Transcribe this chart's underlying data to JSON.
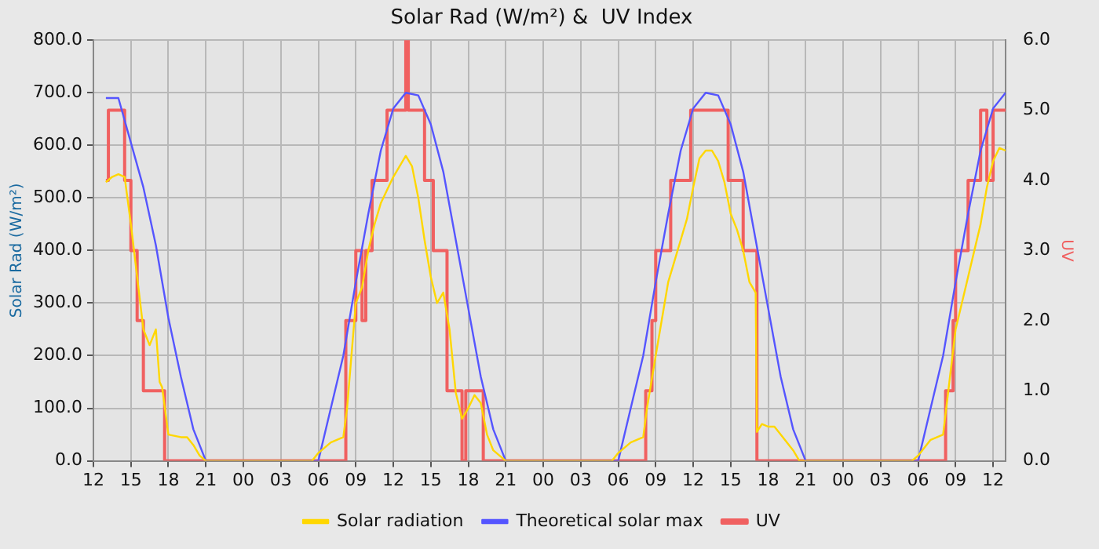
{
  "chart_data": {
    "type": "line",
    "title": "Solar Rad (W/m²) &  UV Index",
    "ylabel": "Solar Rad (W/m²)",
    "y2label": "UV",
    "xlim": [
      12,
      85
    ],
    "xticks": [
      {
        "value": 12,
        "label": "12"
      },
      {
        "value": 15,
        "label": "15"
      },
      {
        "value": 18,
        "label": "18"
      },
      {
        "value": 21,
        "label": "21"
      },
      {
        "value": 24,
        "label": "00"
      },
      {
        "value": 27,
        "label": "03"
      },
      {
        "value": 30,
        "label": "06"
      },
      {
        "value": 33,
        "label": "09"
      },
      {
        "value": 36,
        "label": "12"
      },
      {
        "value": 39,
        "label": "15"
      },
      {
        "value": 42,
        "label": "18"
      },
      {
        "value": 45,
        "label": "21"
      },
      {
        "value": 48,
        "label": "00"
      },
      {
        "value": 51,
        "label": "03"
      },
      {
        "value": 54,
        "label": "06"
      },
      {
        "value": 57,
        "label": "09"
      },
      {
        "value": 60,
        "label": "12"
      },
      {
        "value": 63,
        "label": "15"
      },
      {
        "value": 66,
        "label": "18"
      },
      {
        "value": 69,
        "label": "21"
      },
      {
        "value": 72,
        "label": "00"
      },
      {
        "value": 75,
        "label": "03"
      },
      {
        "value": 78,
        "label": "06"
      },
      {
        "value": 81,
        "label": "09"
      },
      {
        "value": 84,
        "label": "12"
      }
    ],
    "ylim": [
      0,
      800
    ],
    "yticks": [
      {
        "value": 0,
        "label": "0.0"
      },
      {
        "value": 100,
        "label": "100.0"
      },
      {
        "value": 200,
        "label": "200.0"
      },
      {
        "value": 300,
        "label": "300.0"
      },
      {
        "value": 400,
        "label": "400.0"
      },
      {
        "value": 500,
        "label": "500.0"
      },
      {
        "value": 600,
        "label": "600.0"
      },
      {
        "value": 700,
        "label": "700.0"
      },
      {
        "value": 800,
        "label": "800.0"
      }
    ],
    "y2lim": [
      0,
      6
    ],
    "y2ticks": [
      {
        "value": 0,
        "label": "0.0"
      },
      {
        "value": 1,
        "label": "1.0"
      },
      {
        "value": 2,
        "label": "2.0"
      },
      {
        "value": 3,
        "label": "3.0"
      },
      {
        "value": 4,
        "label": "4.0"
      },
      {
        "value": 5,
        "label": "5.0"
      },
      {
        "value": 6,
        "label": "6.0"
      }
    ],
    "grid": true,
    "legend": "bottom",
    "marker": "none",
    "line_style": "solid",
    "series": [
      {
        "name": "Solar radiation",
        "color": "#ffd700",
        "x": [
          13,
          13.5,
          14,
          14.5,
          15,
          15.5,
          16,
          16.5,
          17,
          17.3,
          17.5,
          18,
          19,
          19.5,
          20,
          20.5,
          21,
          29.5,
          30,
          31,
          32,
          32.3,
          33,
          33.5,
          34,
          34.5,
          35,
          36,
          36.5,
          37,
          37.5,
          38,
          38.5,
          39,
          39.5,
          40,
          40.5,
          41,
          41.5,
          42,
          42.5,
          43,
          43.5,
          44,
          45,
          53.5,
          54,
          55,
          56,
          56.3,
          57,
          57.5,
          58,
          58.5,
          59,
          59.5,
          60,
          60.5,
          61,
          61.5,
          62,
          62.5,
          63,
          63.5,
          64,
          64.5,
          65,
          65.1,
          65.5,
          66,
          66.5,
          67,
          68,
          68.5,
          77.5,
          78,
          79,
          80,
          80.5,
          81,
          81.5,
          82,
          82.5,
          83,
          83.5,
          84,
          84.5,
          85
        ],
        "values": [
          530,
          540,
          545,
          540,
          450,
          350,
          250,
          220,
          250,
          150,
          140,
          50,
          45,
          45,
          30,
          10,
          0,
          0,
          15,
          35,
          45,
          100,
          300,
          330,
          400,
          450,
          490,
          540,
          560,
          580,
          560,
          500,
          420,
          350,
          300,
          320,
          250,
          130,
          80,
          100,
          125,
          110,
          50,
          20,
          0,
          0,
          15,
          35,
          45,
          100,
          200,
          270,
          340,
          380,
          420,
          460,
          520,
          575,
          590,
          590,
          570,
          530,
          470,
          440,
          400,
          340,
          320,
          55,
          70,
          65,
          65,
          50,
          20,
          0,
          0,
          10,
          40,
          50,
          150,
          250,
          300,
          350,
          400,
          450,
          520,
          570,
          595,
          590
        ]
      },
      {
        "name": "Theoretical solar max",
        "color": "#5555ff",
        "x": [
          13,
          14,
          15,
          16,
          17,
          18,
          19,
          20,
          21,
          30,
          31,
          32,
          33,
          34,
          35,
          36,
          37,
          38,
          39,
          40,
          41,
          42,
          43,
          44,
          45,
          54,
          55,
          56,
          57,
          58,
          59,
          60,
          61,
          62,
          63,
          64,
          65,
          66,
          67,
          68,
          69,
          78,
          79,
          80,
          81,
          82,
          83,
          84,
          85
        ],
        "values": [
          690,
          690,
          605,
          520,
          410,
          272,
          160,
          60,
          0,
          0,
          100,
          200,
          340,
          470,
          590,
          670,
          700,
          695,
          640,
          550,
          420,
          290,
          160,
          60,
          0,
          0,
          100,
          200,
          340,
          470,
          590,
          670,
          700,
          695,
          640,
          550,
          420,
          290,
          160,
          60,
          0,
          0,
          100,
          200,
          340,
          470,
          590,
          670,
          700
        ]
      },
      {
        "name": "UV",
        "type": "step",
        "axis": "y2",
        "color": "#f06060",
        "x": [
          13,
          13.2,
          14.5,
          15,
          15.5,
          16,
          17.7,
          32.2,
          33,
          33.5,
          33.8,
          34.3,
          35.5,
          37,
          37.2,
          38.5,
          39.2,
          40.3,
          41.5,
          41.8,
          43.2,
          56.2,
          56.7,
          57,
          58.2,
          59.8,
          62.8,
          64,
          65.1,
          80.2,
          80.8,
          81,
          82,
          83,
          83.5,
          84,
          85
        ],
        "values": [
          4,
          5,
          4,
          3,
          2,
          1,
          0,
          2,
          3,
          2,
          3,
          4,
          5,
          6,
          5,
          4,
          3,
          1,
          0,
          1,
          0,
          1,
          2,
          3,
          4,
          5,
          4,
          3,
          0,
          1,
          2,
          3,
          4,
          5,
          4,
          5,
          5
        ]
      }
    ]
  }
}
